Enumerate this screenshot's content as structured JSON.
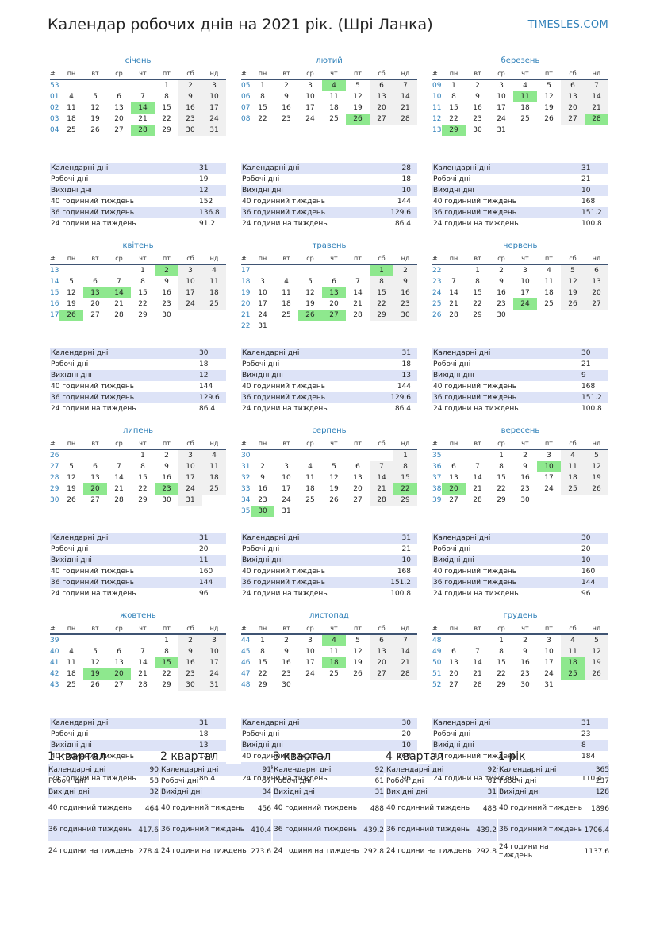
{
  "title": "Календар робочих днів на 2021 рік. (Шрі Ланка)",
  "brand": "TIMESLES.COM",
  "weekday_headers": [
    "#",
    "пн",
    "вт",
    "ср",
    "чт",
    "пт",
    "сб",
    "нд"
  ],
  "stat_labels": [
    "Календарні дні",
    "Робочі дні",
    "Вихідні дні",
    "40 годинний тиждень",
    "36 годинний тиждень",
    "24 години на тиждень"
  ],
  "months": [
    {
      "name": "січень",
      "weeks": [
        [
          "53",
          "",
          "",
          "",
          "",
          "1",
          "2",
          "3"
        ],
        [
          "01",
          "4",
          "5",
          "6",
          "7",
          "8",
          "9",
          "10"
        ],
        [
          "02",
          "11",
          "12",
          "13",
          "14",
          "15",
          "16",
          "17"
        ],
        [
          "03",
          "18",
          "19",
          "20",
          "21",
          "22",
          "23",
          "24"
        ],
        [
          "04",
          "25",
          "26",
          "27",
          "28",
          "29",
          "30",
          "31"
        ]
      ],
      "holidays": [
        "14",
        "28"
      ],
      "stats": [
        "31",
        "19",
        "12",
        "152",
        "136.8",
        "91.2"
      ]
    },
    {
      "name": "лютий",
      "weeks": [
        [
          "05",
          "1",
          "2",
          "3",
          "4",
          "5",
          "6",
          "7"
        ],
        [
          "06",
          "8",
          "9",
          "10",
          "11",
          "12",
          "13",
          "14"
        ],
        [
          "07",
          "15",
          "16",
          "17",
          "18",
          "19",
          "20",
          "21"
        ],
        [
          "08",
          "22",
          "23",
          "24",
          "25",
          "26",
          "27",
          "28"
        ]
      ],
      "holidays": [
        "4",
        "26"
      ],
      "stats": [
        "28",
        "18",
        "10",
        "144",
        "129.6",
        "86.4"
      ]
    },
    {
      "name": "березень",
      "weeks": [
        [
          "09",
          "1",
          "2",
          "3",
          "4",
          "5",
          "6",
          "7"
        ],
        [
          "10",
          "8",
          "9",
          "10",
          "11",
          "12",
          "13",
          "14"
        ],
        [
          "11",
          "15",
          "16",
          "17",
          "18",
          "19",
          "20",
          "21"
        ],
        [
          "12",
          "22",
          "23",
          "24",
          "25",
          "26",
          "27",
          "28"
        ],
        [
          "13",
          "29",
          "30",
          "31",
          "",
          "",
          "",
          ""
        ]
      ],
      "holidays": [
        "11",
        "28",
        "29"
      ],
      "stats": [
        "31",
        "21",
        "10",
        "168",
        "151.2",
        "100.8"
      ]
    },
    {
      "name": "квітень",
      "weeks": [
        [
          "13",
          "",
          "",
          "",
          "1",
          "2",
          "3",
          "4"
        ],
        [
          "14",
          "5",
          "6",
          "7",
          "8",
          "9",
          "10",
          "11"
        ],
        [
          "15",
          "12",
          "13",
          "14",
          "15",
          "16",
          "17",
          "18"
        ],
        [
          "16",
          "19",
          "20",
          "21",
          "22",
          "23",
          "24",
          "25"
        ],
        [
          "17",
          "26",
          "27",
          "28",
          "29",
          "30",
          "",
          ""
        ]
      ],
      "holidays": [
        "2",
        "13",
        "14",
        "26"
      ],
      "stats": [
        "30",
        "18",
        "12",
        "144",
        "129.6",
        "86.4"
      ]
    },
    {
      "name": "травень",
      "weeks": [
        [
          "17",
          "",
          "",
          "",
          "",
          "",
          "1",
          "2"
        ],
        [
          "18",
          "3",
          "4",
          "5",
          "6",
          "7",
          "8",
          "9"
        ],
        [
          "19",
          "10",
          "11",
          "12",
          "13",
          "14",
          "15",
          "16"
        ],
        [
          "20",
          "17",
          "18",
          "19",
          "20",
          "21",
          "22",
          "23"
        ],
        [
          "21",
          "24",
          "25",
          "26",
          "27",
          "28",
          "29",
          "30"
        ],
        [
          "22",
          "31",
          "",
          "",
          "",
          "",
          "",
          ""
        ]
      ],
      "holidays": [
        "1",
        "13",
        "26",
        "27"
      ],
      "stats": [
        "31",
        "18",
        "13",
        "144",
        "129.6",
        "86.4"
      ]
    },
    {
      "name": "червень",
      "weeks": [
        [
          "22",
          "",
          "1",
          "2",
          "3",
          "4",
          "5",
          "6"
        ],
        [
          "23",
          "7",
          "8",
          "9",
          "10",
          "11",
          "12",
          "13"
        ],
        [
          "24",
          "14",
          "15",
          "16",
          "17",
          "18",
          "19",
          "20"
        ],
        [
          "25",
          "21",
          "22",
          "23",
          "24",
          "25",
          "26",
          "27"
        ],
        [
          "26",
          "28",
          "29",
          "30",
          "",
          "",
          "",
          ""
        ]
      ],
      "holidays": [
        "24"
      ],
      "stats": [
        "30",
        "21",
        "9",
        "168",
        "151.2",
        "100.8"
      ]
    },
    {
      "name": "липень",
      "weeks": [
        [
          "26",
          "",
          "",
          "",
          "1",
          "2",
          "3",
          "4"
        ],
        [
          "27",
          "5",
          "6",
          "7",
          "8",
          "9",
          "10",
          "11"
        ],
        [
          "28",
          "12",
          "13",
          "14",
          "15",
          "16",
          "17",
          "18"
        ],
        [
          "29",
          "19",
          "20",
          "21",
          "22",
          "23",
          "24",
          "25"
        ],
        [
          "30",
          "26",
          "27",
          "28",
          "29",
          "30",
          "31",
          ""
        ]
      ],
      "holidays": [
        "20",
        "23"
      ],
      "stats": [
        "31",
        "20",
        "11",
        "160",
        "144",
        "96"
      ]
    },
    {
      "name": "серпень",
      "weeks": [
        [
          "30",
          "",
          "",
          "",
          "",
          "",
          "",
          "1"
        ],
        [
          "31",
          "2",
          "3",
          "4",
          "5",
          "6",
          "7",
          "8"
        ],
        [
          "32",
          "9",
          "10",
          "11",
          "12",
          "13",
          "14",
          "15"
        ],
        [
          "33",
          "16",
          "17",
          "18",
          "19",
          "20",
          "21",
          "22"
        ],
        [
          "34",
          "23",
          "24",
          "25",
          "26",
          "27",
          "28",
          "29"
        ],
        [
          "35",
          "30",
          "31",
          "",
          "",
          "",
          "",
          ""
        ]
      ],
      "holidays": [
        "22",
        "30"
      ],
      "stats": [
        "31",
        "21",
        "10",
        "168",
        "151.2",
        "100.8"
      ]
    },
    {
      "name": "вересень",
      "weeks": [
        [
          "35",
          "",
          "",
          "1",
          "2",
          "3",
          "4",
          "5"
        ],
        [
          "36",
          "6",
          "7",
          "8",
          "9",
          "10",
          "11",
          "12"
        ],
        [
          "37",
          "13",
          "14",
          "15",
          "16",
          "17",
          "18",
          "19"
        ],
        [
          "38",
          "20",
          "21",
          "22",
          "23",
          "24",
          "25",
          "26"
        ],
        [
          "39",
          "27",
          "28",
          "29",
          "30",
          "",
          "",
          ""
        ]
      ],
      "holidays": [
        "10",
        "20"
      ],
      "stats": [
        "30",
        "20",
        "10",
        "160",
        "144",
        "96"
      ]
    },
    {
      "name": "жовтень",
      "weeks": [
        [
          "39",
          "",
          "",
          "",
          "",
          "1",
          "2",
          "3"
        ],
        [
          "40",
          "4",
          "5",
          "6",
          "7",
          "8",
          "9",
          "10"
        ],
        [
          "41",
          "11",
          "12",
          "13",
          "14",
          "15",
          "16",
          "17"
        ],
        [
          "42",
          "18",
          "19",
          "20",
          "21",
          "22",
          "23",
          "24"
        ],
        [
          "43",
          "25",
          "26",
          "27",
          "28",
          "29",
          "30",
          "31"
        ]
      ],
      "holidays": [
        "15",
        "19",
        "20"
      ],
      "stats": [
        "31",
        "18",
        "13",
        "144",
        "129.6",
        "86.4"
      ]
    },
    {
      "name": "листопад",
      "weeks": [
        [
          "44",
          "1",
          "2",
          "3",
          "4",
          "5",
          "6",
          "7"
        ],
        [
          "45",
          "8",
          "9",
          "10",
          "11",
          "12",
          "13",
          "14"
        ],
        [
          "46",
          "15",
          "16",
          "17",
          "18",
          "19",
          "20",
          "21"
        ],
        [
          "47",
          "22",
          "23",
          "24",
          "25",
          "26",
          "27",
          "28"
        ],
        [
          "48",
          "29",
          "30",
          "",
          "",
          "",
          "",
          ""
        ]
      ],
      "holidays": [
        "4",
        "18"
      ],
      "stats": [
        "30",
        "20",
        "10",
        "160",
        "144",
        "96"
      ]
    },
    {
      "name": "грудень",
      "weeks": [
        [
          "48",
          "",
          "",
          "1",
          "2",
          "3",
          "4",
          "5"
        ],
        [
          "49",
          "6",
          "7",
          "8",
          "9",
          "10",
          "11",
          "12"
        ],
        [
          "50",
          "13",
          "14",
          "15",
          "16",
          "17",
          "18",
          "19"
        ],
        [
          "51",
          "20",
          "21",
          "22",
          "23",
          "24",
          "25",
          "26"
        ],
        [
          "52",
          "27",
          "28",
          "29",
          "30",
          "31",
          "",
          ""
        ]
      ],
      "holidays": [
        "18",
        "25"
      ],
      "stats": [
        "31",
        "23",
        "8",
        "184",
        "165.6",
        "110.4"
      ]
    }
  ],
  "quarter_labels": [
    "Календарні дні",
    "Робочі дні",
    "Вихідні дні",
    "40 годинний тиждень",
    "36 годинний тиждень",
    "24 години на тиждень"
  ],
  "quarters": [
    {
      "title": "1 квартал",
      "values": [
        "90",
        "58",
        "32",
        "464",
        "417.6",
        "278.4"
      ]
    },
    {
      "title": "2 квартал",
      "values": [
        "91",
        "57",
        "34",
        "456",
        "410.4",
        "273.6"
      ]
    },
    {
      "title": "3 квартал",
      "values": [
        "92",
        "61",
        "31",
        "488",
        "439.2",
        "292.8"
      ]
    },
    {
      "title": "4 квартал",
      "values": [
        "92",
        "61",
        "31",
        "488",
        "439.2",
        "292.8"
      ]
    },
    {
      "title": "1 рік",
      "values": [
        "365",
        "237",
        "128",
        "1896",
        "1706.4",
        "1137.6"
      ]
    }
  ],
  "colors": {
    "accent": "#2e7fb8",
    "holiday": "#8ee88e",
    "weekend": "#f0f0f0",
    "stripe": "#dde3f7",
    "rule": "#3f5473"
  }
}
